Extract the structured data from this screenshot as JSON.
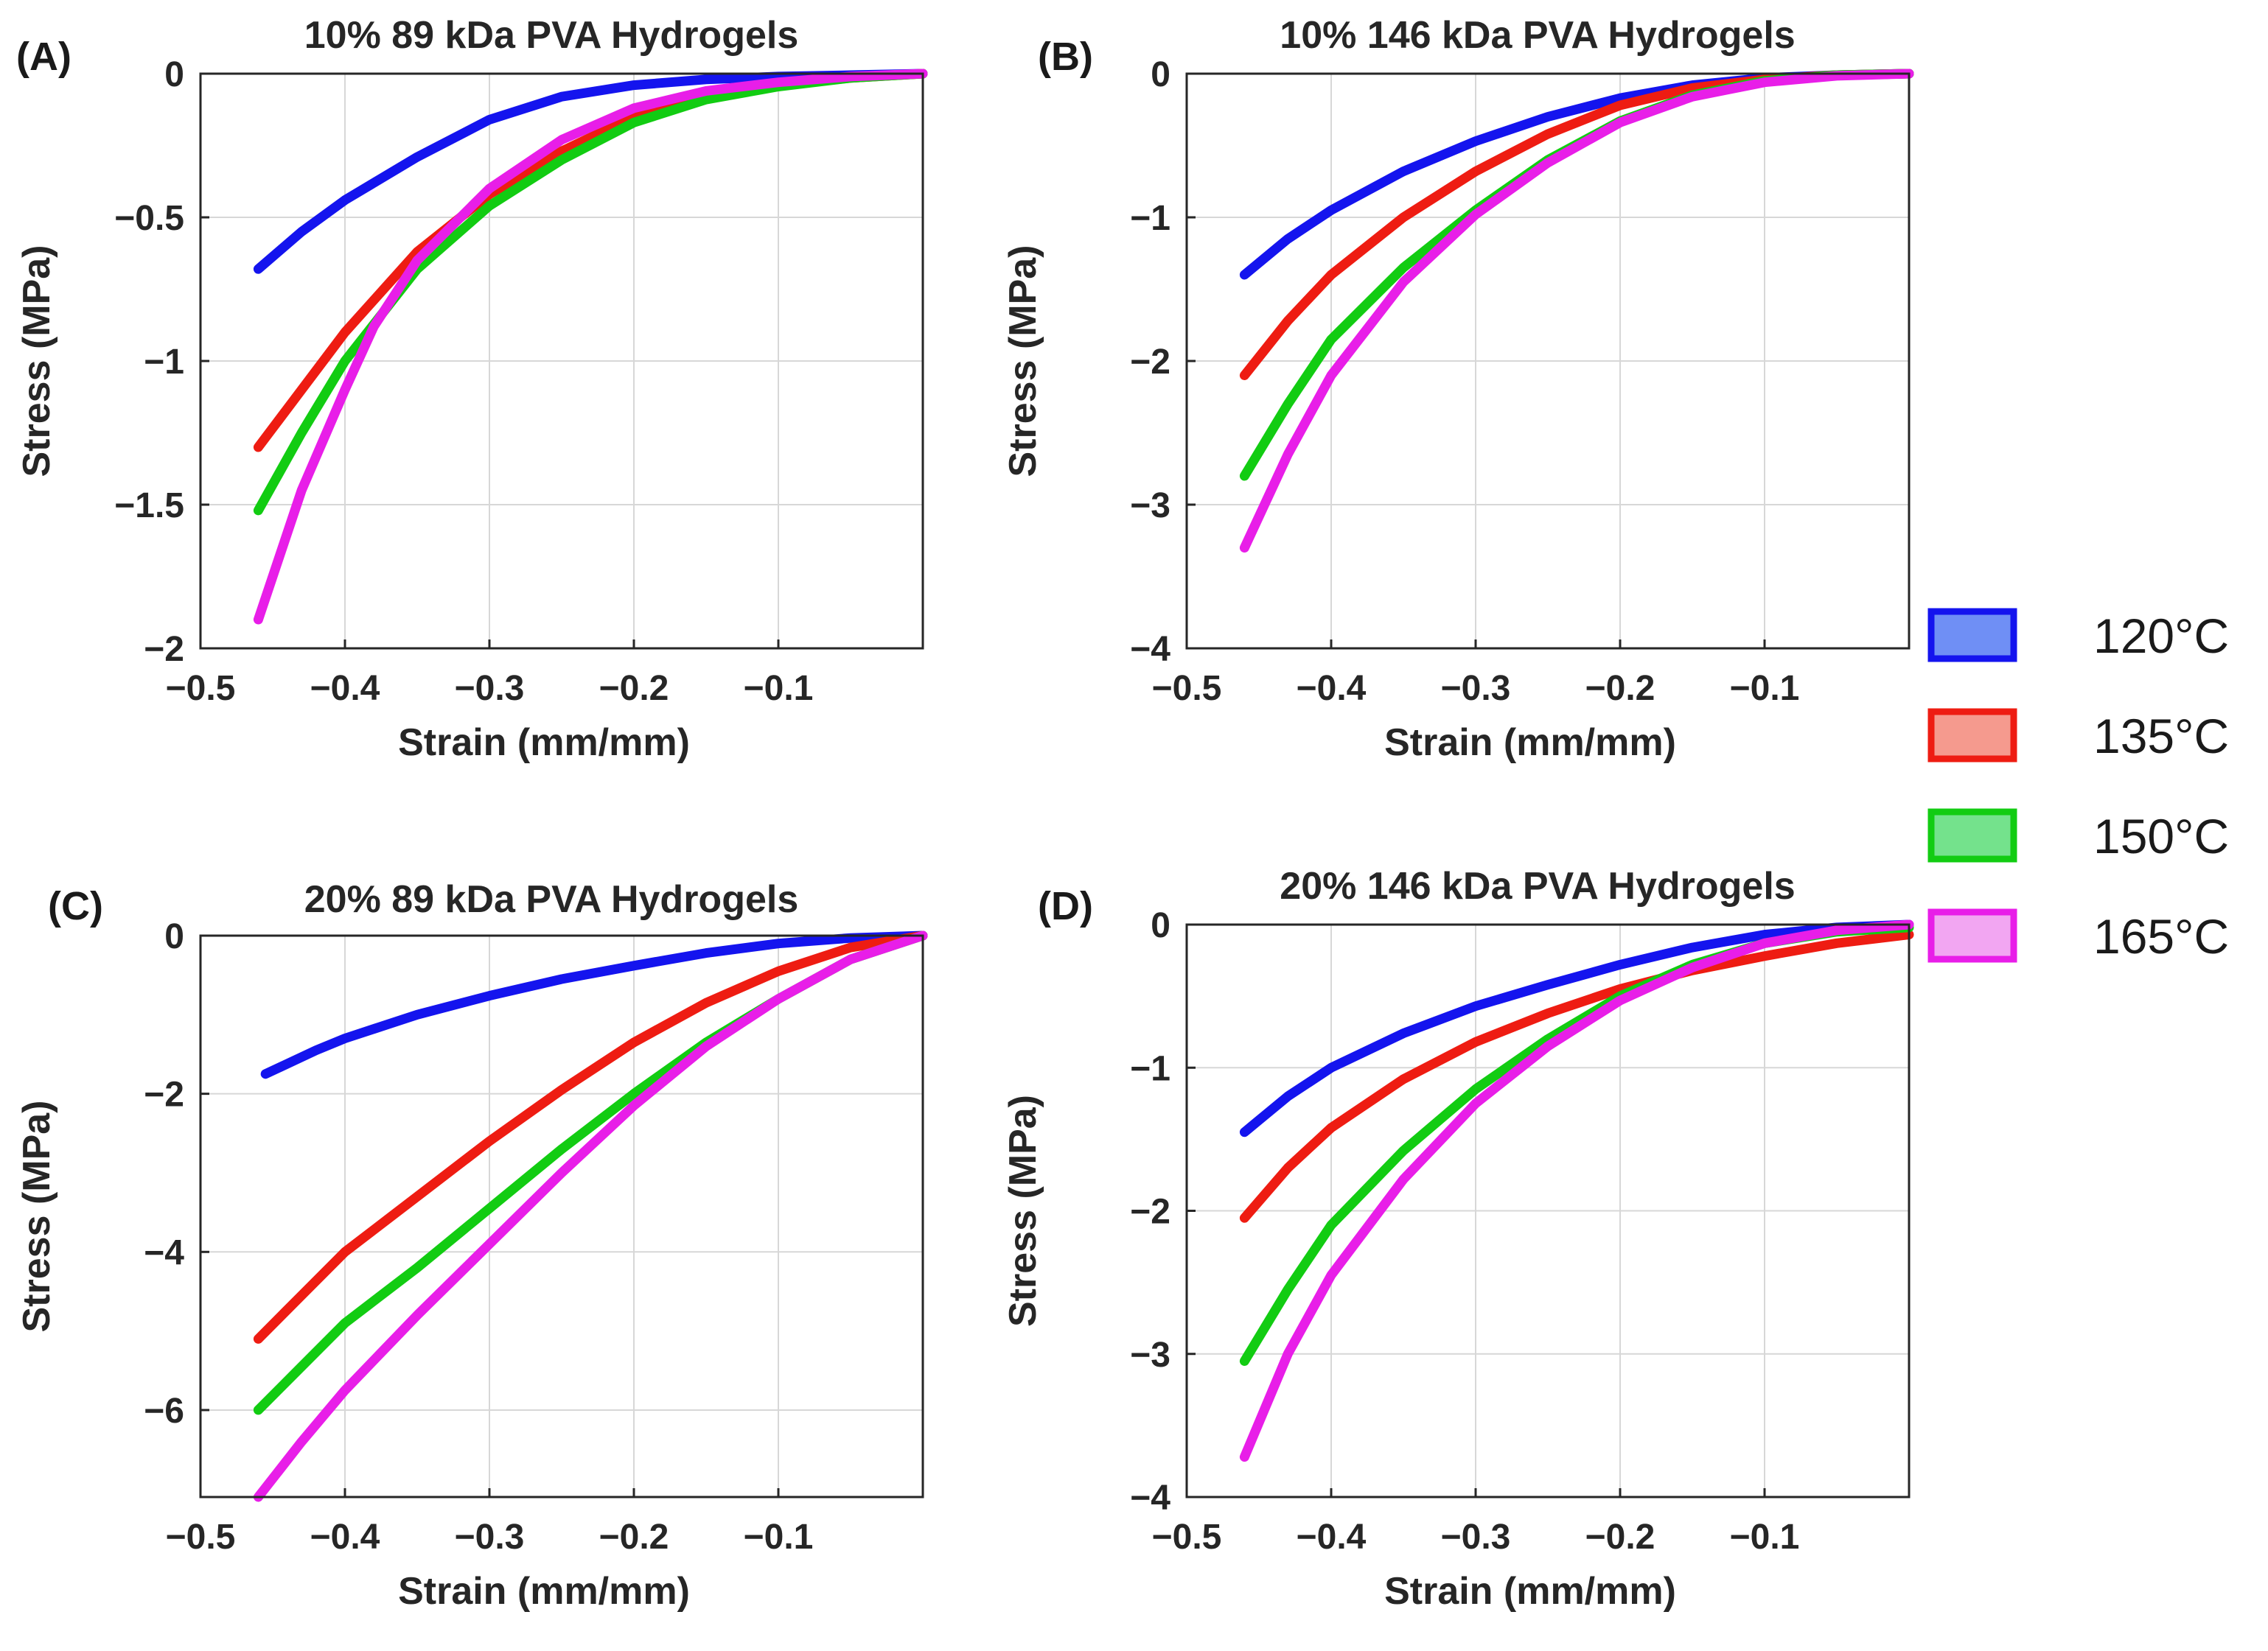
{
  "legend": {
    "items": [
      {
        "label": "120°C",
        "color": "#1414ee",
        "fill": "#6f8ff5"
      },
      {
        "label": "135°C",
        "color": "#ee1c12",
        "fill": "#f59a8e"
      },
      {
        "label": "150°C",
        "color": "#12cc12",
        "fill": "#74e28c"
      },
      {
        "label": "165°C",
        "color": "#e81ee8",
        "fill": "#f2a6f2"
      }
    ]
  },
  "chart_data": [
    {
      "type": "line",
      "panel": "(A)",
      "title": "10% 89 kDa PVA Hydrogels",
      "xlabel": "Strain (mm/mm)",
      "ylabel": "Stress (MPa)",
      "xlim": [
        -0.5,
        0
      ],
      "ylim": [
        -2,
        0
      ],
      "xticks": [
        -0.5,
        -0.4,
        -0.3,
        -0.2,
        -0.1
      ],
      "xtick_labels": [
        "−0.5",
        "−0.4",
        "−0.3",
        "−0.2",
        "−0.1"
      ],
      "yticks": [
        0,
        -0.5,
        -1,
        -1.5,
        -2
      ],
      "ytick_labels": [
        "0",
        "−0.5",
        "−1",
        "−1.5",
        "−2"
      ],
      "grid": true,
      "series": [
        {
          "name": "120°C",
          "color": "#1414ee",
          "x": [
            -0.46,
            -0.43,
            -0.4,
            -0.35,
            -0.3,
            -0.25,
            -0.2,
            -0.15,
            -0.1,
            -0.05,
            0.0
          ],
          "y": [
            -0.68,
            -0.55,
            -0.44,
            -0.29,
            -0.16,
            -0.08,
            -0.04,
            -0.02,
            -0.01,
            -0.005,
            0
          ]
        },
        {
          "name": "135°C",
          "color": "#ee1c12",
          "x": [
            -0.46,
            -0.43,
            -0.4,
            -0.35,
            -0.3,
            -0.25,
            -0.2,
            -0.15,
            -0.1,
            -0.05,
            0.0
          ],
          "y": [
            -1.3,
            -1.1,
            -0.9,
            -0.62,
            -0.42,
            -0.27,
            -0.15,
            -0.08,
            -0.04,
            -0.015,
            0
          ]
        },
        {
          "name": "150°C",
          "color": "#12cc12",
          "x": [
            -0.46,
            -0.43,
            -0.4,
            -0.35,
            -0.3,
            -0.25,
            -0.2,
            -0.15,
            -0.1,
            -0.05,
            0.0
          ],
          "y": [
            -1.52,
            -1.25,
            -1.0,
            -0.68,
            -0.46,
            -0.3,
            -0.17,
            -0.09,
            -0.045,
            -0.015,
            0
          ]
        },
        {
          "name": "165°C",
          "color": "#e81ee8",
          "x": [
            -0.46,
            -0.43,
            -0.4,
            -0.38,
            -0.35,
            -0.3,
            -0.25,
            -0.2,
            -0.15,
            -0.1,
            -0.05,
            0.0
          ],
          "y": [
            -1.9,
            -1.45,
            -1.1,
            -0.88,
            -0.65,
            -0.4,
            -0.23,
            -0.12,
            -0.06,
            -0.03,
            -0.01,
            0
          ]
        }
      ]
    },
    {
      "type": "line",
      "panel": "(B)",
      "title": "10% 146 kDa PVA Hydrogels",
      "xlabel": "Strain (mm/mm)",
      "ylabel": "Stress (MPa)",
      "xlim": [
        -0.5,
        0
      ],
      "ylim": [
        -4,
        0
      ],
      "xticks": [
        -0.5,
        -0.4,
        -0.3,
        -0.2,
        -0.1
      ],
      "xtick_labels": [
        "−0.5",
        "−0.4",
        "−0.3",
        "−0.2",
        "−0.1"
      ],
      "yticks": [
        0,
        -1,
        -2,
        -3,
        -4
      ],
      "ytick_labels": [
        "0",
        "−1",
        "−2",
        "−3",
        "−4"
      ],
      "grid": true,
      "series": [
        {
          "name": "120°C",
          "color": "#1414ee",
          "x": [
            -0.46,
            -0.43,
            -0.4,
            -0.35,
            -0.3,
            -0.25,
            -0.2,
            -0.15,
            -0.1,
            -0.05,
            0.0
          ],
          "y": [
            -1.4,
            -1.15,
            -0.95,
            -0.68,
            -0.47,
            -0.3,
            -0.17,
            -0.08,
            -0.03,
            -0.01,
            0
          ]
        },
        {
          "name": "135°C",
          "color": "#ee1c12",
          "x": [
            -0.46,
            -0.43,
            -0.4,
            -0.35,
            -0.3,
            -0.25,
            -0.2,
            -0.15,
            -0.1,
            -0.05,
            0.0
          ],
          "y": [
            -2.1,
            -1.72,
            -1.4,
            -1.0,
            -0.68,
            -0.42,
            -0.22,
            -0.1,
            -0.04,
            -0.01,
            0
          ]
        },
        {
          "name": "150°C",
          "color": "#12cc12",
          "x": [
            -0.46,
            -0.43,
            -0.4,
            -0.35,
            -0.3,
            -0.25,
            -0.2,
            -0.15,
            -0.1,
            -0.05,
            0.0
          ],
          "y": [
            -2.8,
            -2.3,
            -1.85,
            -1.35,
            -0.95,
            -0.6,
            -0.33,
            -0.15,
            -0.05,
            -0.01,
            0
          ]
        },
        {
          "name": "165°C",
          "color": "#e81ee8",
          "x": [
            -0.46,
            -0.43,
            -0.4,
            -0.35,
            -0.3,
            -0.25,
            -0.2,
            -0.15,
            -0.1,
            -0.05,
            0.0
          ],
          "y": [
            -3.3,
            -2.65,
            -2.1,
            -1.45,
            -0.98,
            -0.62,
            -0.34,
            -0.16,
            -0.06,
            -0.015,
            0
          ]
        }
      ]
    },
    {
      "type": "line",
      "panel": "(C)",
      "title": "20% 89 kDa PVA Hydrogels",
      "xlabel": "Strain (mm/mm)",
      "ylabel": "Stress (MPa)",
      "xlim": [
        -0.5,
        0
      ],
      "ylim": [
        -7.1,
        0
      ],
      "xticks": [
        -0.5,
        -0.4,
        -0.3,
        -0.2,
        -0.1
      ],
      "xtick_labels": [
        "−0.5",
        "−0.4",
        "−0.3",
        "−0.2",
        "−0.1"
      ],
      "yticks": [
        0,
        -2,
        -4,
        -6
      ],
      "ytick_labels": [
        "0",
        "−2",
        "−4",
        "−6"
      ],
      "grid": true,
      "series": [
        {
          "name": "120°C",
          "color": "#1414ee",
          "x": [
            -0.455,
            -0.42,
            -0.4,
            -0.35,
            -0.3,
            -0.25,
            -0.2,
            -0.15,
            -0.1,
            -0.05,
            0.0
          ],
          "y": [
            -1.75,
            -1.45,
            -1.3,
            -1.0,
            -0.76,
            -0.55,
            -0.38,
            -0.22,
            -0.1,
            -0.03,
            0
          ]
        },
        {
          "name": "135°C",
          "color": "#ee1c12",
          "x": [
            -0.46,
            -0.43,
            -0.4,
            -0.35,
            -0.3,
            -0.25,
            -0.2,
            -0.15,
            -0.1,
            -0.05,
            0.0
          ],
          "y": [
            -5.1,
            -4.55,
            -4.0,
            -3.3,
            -2.6,
            -1.95,
            -1.35,
            -0.85,
            -0.45,
            -0.15,
            0
          ]
        },
        {
          "name": "150°C",
          "color": "#12cc12",
          "x": [
            -0.46,
            -0.43,
            -0.4,
            -0.35,
            -0.3,
            -0.25,
            -0.2,
            -0.15,
            -0.1,
            -0.05,
            0.0
          ],
          "y": [
            -6.0,
            -5.45,
            -4.9,
            -4.2,
            -3.45,
            -2.7,
            -2.0,
            -1.35,
            -0.8,
            -0.3,
            0
          ]
        },
        {
          "name": "165°C",
          "color": "#e81ee8",
          "x": [
            -0.46,
            -0.43,
            -0.4,
            -0.35,
            -0.3,
            -0.25,
            -0.2,
            -0.15,
            -0.1,
            -0.05,
            0.0
          ],
          "y": [
            -7.1,
            -6.4,
            -5.75,
            -4.8,
            -3.9,
            -3.0,
            -2.15,
            -1.4,
            -0.8,
            -0.3,
            0
          ]
        }
      ]
    },
    {
      "type": "line",
      "panel": "(D)",
      "title": "20% 146 kDa PVA Hydrogels",
      "xlabel": "Strain (mm/mm)",
      "ylabel": "Stress (MPa)",
      "xlim": [
        -0.5,
        0
      ],
      "ylim": [
        -4,
        0
      ],
      "xticks": [
        -0.5,
        -0.4,
        -0.3,
        -0.2,
        -0.1
      ],
      "xtick_labels": [
        "−0.5",
        "−0.4",
        "−0.3",
        "−0.2",
        "−0.1"
      ],
      "yticks": [
        0,
        -1,
        -2,
        -3,
        -4
      ],
      "ytick_labels": [
        "0",
        "−1",
        "−2",
        "−3",
        "−4"
      ],
      "grid": true,
      "series": [
        {
          "name": "120°C",
          "color": "#1414ee",
          "x": [
            -0.46,
            -0.43,
            -0.4,
            -0.35,
            -0.3,
            -0.25,
            -0.2,
            -0.15,
            -0.1,
            -0.05,
            0.0
          ],
          "y": [
            -1.45,
            -1.2,
            -1.0,
            -0.76,
            -0.57,
            -0.42,
            -0.28,
            -0.16,
            -0.07,
            -0.02,
            0
          ]
        },
        {
          "name": "135°C",
          "color": "#ee1c12",
          "x": [
            -0.46,
            -0.43,
            -0.4,
            -0.35,
            -0.3,
            -0.25,
            -0.2,
            -0.15,
            -0.1,
            -0.05,
            0.0
          ],
          "y": [
            -2.05,
            -1.7,
            -1.42,
            -1.08,
            -0.82,
            -0.62,
            -0.45,
            -0.32,
            -0.22,
            -0.13,
            -0.07
          ]
        },
        {
          "name": "150°C",
          "color": "#12cc12",
          "x": [
            -0.46,
            -0.43,
            -0.4,
            -0.35,
            -0.3,
            -0.25,
            -0.2,
            -0.15,
            -0.1,
            -0.05,
            0.0
          ],
          "y": [
            -3.05,
            -2.55,
            -2.1,
            -1.58,
            -1.15,
            -0.8,
            -0.5,
            -0.28,
            -0.13,
            -0.05,
            -0.02
          ]
        },
        {
          "name": "165°C",
          "color": "#e81ee8",
          "x": [
            -0.46,
            -0.43,
            -0.4,
            -0.35,
            -0.3,
            -0.25,
            -0.2,
            -0.15,
            -0.1,
            -0.05,
            0.0
          ],
          "y": [
            -3.72,
            -3.0,
            -2.45,
            -1.78,
            -1.25,
            -0.85,
            -0.53,
            -0.3,
            -0.13,
            -0.04,
            0
          ]
        }
      ]
    }
  ]
}
